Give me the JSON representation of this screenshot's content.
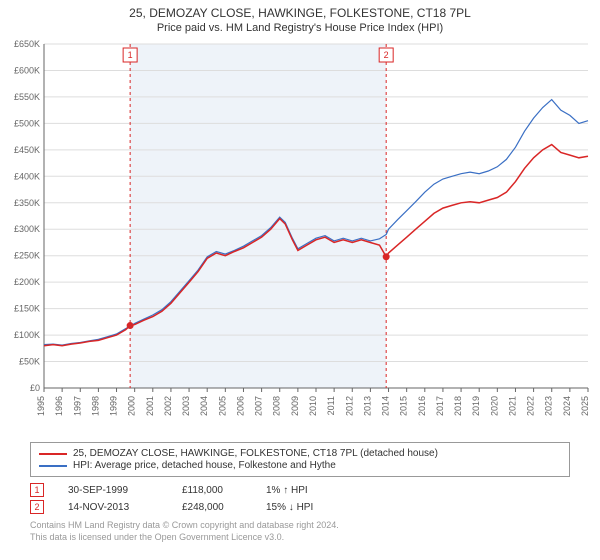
{
  "title": {
    "line1": "25, DEMOZAY CLOSE, HAWKINGE, FOLKESTONE, CT18 7PL",
    "line2": "Price paid vs. HM Land Registry's House Price Index (HPI)"
  },
  "chart": {
    "type": "line",
    "background_color": "#ffffff",
    "plot_background_color": "#ffffff",
    "shaded_band_color": "#eef3f9",
    "grid_color": "#dddddd",
    "axis_color": "#666666",
    "axis_font_size": 9,
    "x": {
      "min": 1995,
      "max": 2025,
      "tick_step": 1,
      "ticks": [
        1995,
        1996,
        1997,
        1998,
        1999,
        2000,
        2001,
        2002,
        2003,
        2004,
        2005,
        2006,
        2007,
        2008,
        2009,
        2010,
        2011,
        2012,
        2013,
        2014,
        2015,
        2016,
        2017,
        2018,
        2019,
        2020,
        2021,
        2022,
        2023,
        2024,
        2025
      ]
    },
    "y": {
      "min": 0,
      "max": 650000,
      "tick_step": 50000,
      "ticks": [
        0,
        50000,
        100000,
        150000,
        200000,
        250000,
        300000,
        350000,
        400000,
        450000,
        500000,
        550000,
        600000,
        650000
      ],
      "tick_labels": [
        "£0",
        "£50K",
        "£100K",
        "£150K",
        "£200K",
        "£250K",
        "£300K",
        "£350K",
        "£400K",
        "£450K",
        "£500K",
        "£550K",
        "£600K",
        "£650K"
      ]
    },
    "series": [
      {
        "id": "price_paid",
        "label": "25, DEMOZAY CLOSE, HAWKINGE, FOLKESTONE, CT18 7PL (detached house)",
        "color": "#d92626",
        "line_width": 1.5,
        "data": [
          [
            1995.0,
            80000
          ],
          [
            1995.5,
            82000
          ],
          [
            1996.0,
            80000
          ],
          [
            1996.5,
            83000
          ],
          [
            1997.0,
            85000
          ],
          [
            1997.5,
            88000
          ],
          [
            1998.0,
            90000
          ],
          [
            1998.5,
            95000
          ],
          [
            1999.0,
            100000
          ],
          [
            1999.5,
            110000
          ],
          [
            1999.75,
            118000
          ],
          [
            2000.0,
            120000
          ],
          [
            2000.5,
            128000
          ],
          [
            2001.0,
            135000
          ],
          [
            2001.5,
            145000
          ],
          [
            2002.0,
            160000
          ],
          [
            2002.5,
            180000
          ],
          [
            2003.0,
            200000
          ],
          [
            2003.5,
            220000
          ],
          [
            2004.0,
            245000
          ],
          [
            2004.5,
            255000
          ],
          [
            2005.0,
            250000
          ],
          [
            2005.5,
            258000
          ],
          [
            2006.0,
            265000
          ],
          [
            2006.5,
            275000
          ],
          [
            2007.0,
            285000
          ],
          [
            2007.5,
            300000
          ],
          [
            2008.0,
            320000
          ],
          [
            2008.3,
            310000
          ],
          [
            2008.7,
            280000
          ],
          [
            2009.0,
            260000
          ],
          [
            2009.5,
            270000
          ],
          [
            2010.0,
            280000
          ],
          [
            2010.5,
            285000
          ],
          [
            2011.0,
            275000
          ],
          [
            2011.5,
            280000
          ],
          [
            2012.0,
            275000
          ],
          [
            2012.5,
            280000
          ],
          [
            2013.0,
            275000
          ],
          [
            2013.5,
            270000
          ],
          [
            2013.87,
            248000
          ],
          [
            2014.0,
            255000
          ],
          [
            2014.5,
            270000
          ],
          [
            2015.0,
            285000
          ],
          [
            2015.5,
            300000
          ],
          [
            2016.0,
            315000
          ],
          [
            2016.5,
            330000
          ],
          [
            2017.0,
            340000
          ],
          [
            2017.5,
            345000
          ],
          [
            2018.0,
            350000
          ],
          [
            2018.5,
            352000
          ],
          [
            2019.0,
            350000
          ],
          [
            2019.5,
            355000
          ],
          [
            2020.0,
            360000
          ],
          [
            2020.5,
            370000
          ],
          [
            2021.0,
            390000
          ],
          [
            2021.5,
            415000
          ],
          [
            2022.0,
            435000
          ],
          [
            2022.5,
            450000
          ],
          [
            2023.0,
            460000
          ],
          [
            2023.5,
            445000
          ],
          [
            2024.0,
            440000
          ],
          [
            2024.5,
            435000
          ],
          [
            2025.0,
            438000
          ]
        ]
      },
      {
        "id": "hpi",
        "label": "HPI: Average price, detached house, Folkestone and Hythe",
        "color": "#3a6fc4",
        "line_width": 1.2,
        "data": [
          [
            1995.0,
            82000
          ],
          [
            1995.5,
            83000
          ],
          [
            1996.0,
            81000
          ],
          [
            1996.5,
            84000
          ],
          [
            1997.0,
            86000
          ],
          [
            1997.5,
            89000
          ],
          [
            1998.0,
            92000
          ],
          [
            1998.5,
            97000
          ],
          [
            1999.0,
            102000
          ],
          [
            1999.5,
            112000
          ],
          [
            2000.0,
            122000
          ],
          [
            2000.5,
            130000
          ],
          [
            2001.0,
            138000
          ],
          [
            2001.5,
            148000
          ],
          [
            2002.0,
            163000
          ],
          [
            2002.5,
            183000
          ],
          [
            2003.0,
            203000
          ],
          [
            2003.5,
            223000
          ],
          [
            2004.0,
            248000
          ],
          [
            2004.5,
            258000
          ],
          [
            2005.0,
            253000
          ],
          [
            2005.5,
            260000
          ],
          [
            2006.0,
            268000
          ],
          [
            2006.5,
            278000
          ],
          [
            2007.0,
            288000
          ],
          [
            2007.5,
            303000
          ],
          [
            2008.0,
            323000
          ],
          [
            2008.3,
            313000
          ],
          [
            2008.7,
            283000
          ],
          [
            2009.0,
            263000
          ],
          [
            2009.5,
            273000
          ],
          [
            2010.0,
            283000
          ],
          [
            2010.5,
            288000
          ],
          [
            2011.0,
            278000
          ],
          [
            2011.5,
            283000
          ],
          [
            2012.0,
            278000
          ],
          [
            2012.5,
            283000
          ],
          [
            2013.0,
            278000
          ],
          [
            2013.5,
            282000
          ],
          [
            2013.87,
            290000
          ],
          [
            2014.0,
            300000
          ],
          [
            2014.5,
            318000
          ],
          [
            2015.0,
            335000
          ],
          [
            2015.5,
            352000
          ],
          [
            2016.0,
            370000
          ],
          [
            2016.5,
            385000
          ],
          [
            2017.0,
            395000
          ],
          [
            2017.5,
            400000
          ],
          [
            2018.0,
            405000
          ],
          [
            2018.5,
            408000
          ],
          [
            2019.0,
            405000
          ],
          [
            2019.5,
            410000
          ],
          [
            2020.0,
            418000
          ],
          [
            2020.5,
            432000
          ],
          [
            2021.0,
            455000
          ],
          [
            2021.5,
            485000
          ],
          [
            2022.0,
            510000
          ],
          [
            2022.5,
            530000
          ],
          [
            2023.0,
            545000
          ],
          [
            2023.5,
            525000
          ],
          [
            2024.0,
            515000
          ],
          [
            2024.5,
            500000
          ],
          [
            2025.0,
            505000
          ]
        ]
      }
    ],
    "markers": [
      {
        "id": "1",
        "x": 1999.75,
        "y": 118000,
        "color": "#d92626",
        "date": "30-SEP-1999",
        "price": "£118,000",
        "pct": "1% ↑ HPI"
      },
      {
        "id": "2",
        "x": 2013.87,
        "y": 248000,
        "color": "#d92626",
        "date": "14-NOV-2013",
        "price": "£248,000",
        "pct": "15% ↓ HPI"
      }
    ],
    "shaded_band": {
      "x_from": 1999.75,
      "x_to": 2013.87
    }
  },
  "legend": {
    "series1": "25, DEMOZAY CLOSE, HAWKINGE, FOLKESTONE, CT18 7PL (detached house)",
    "series2": "HPI: Average price, detached house, Folkestone and Hythe"
  },
  "attribution": {
    "line1": "Contains HM Land Registry data © Crown copyright and database right 2024.",
    "line2": "This data is licensed under the Open Government Licence v3.0."
  }
}
